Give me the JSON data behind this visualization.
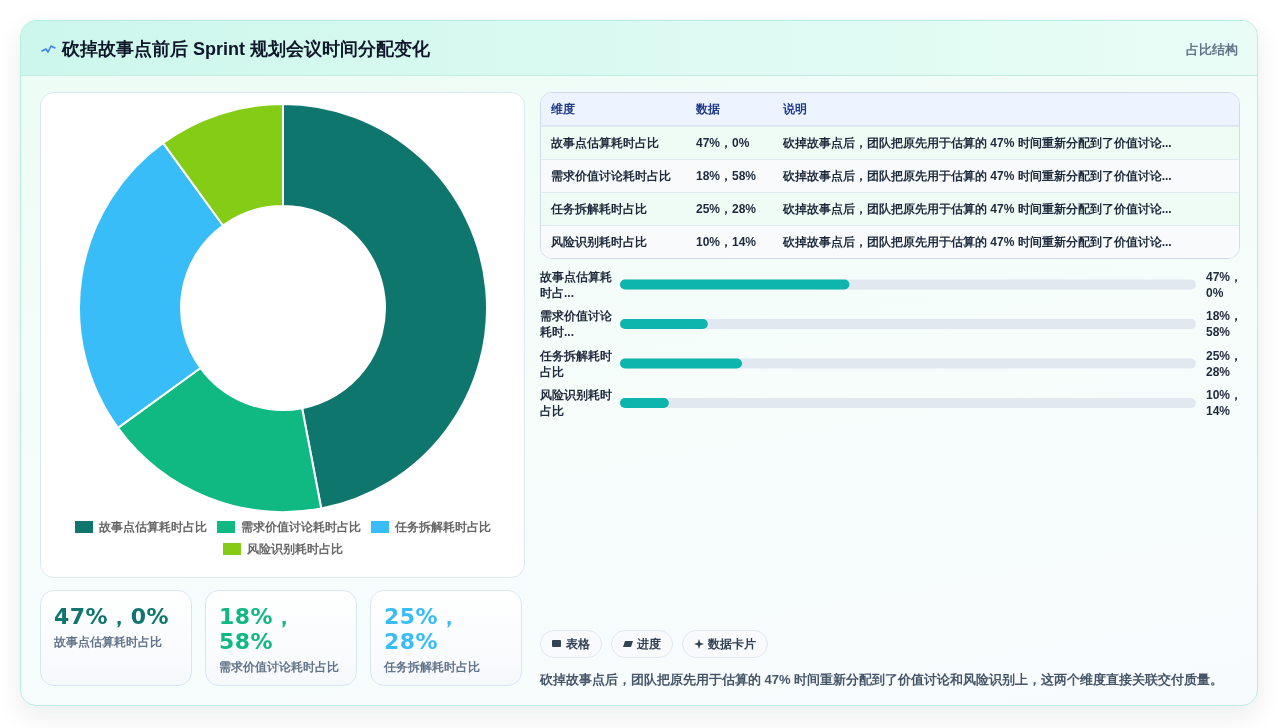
{
  "chart_data": [
    {
      "type": "donut",
      "title": "砍掉故事点前后 Sprint 规划会议时间分配变化",
      "categories": [
        "故事点估算耗时占比",
        "需求价值讨论耗时占比",
        "任务拆解耗时占比",
        "风险识别耗时占比"
      ],
      "values": [
        47,
        18,
        25,
        10
      ],
      "colors": [
        "#0f766e",
        "#10b981",
        "#38bdf8",
        "#84cc16"
      ],
      "legend": "bottom"
    },
    {
      "type": "other",
      "title": "占比结构",
      "annotations": [
        "维度",
        "数据",
        "说明",
        "故事点估算耗时占比",
        "47%，0%",
        "砍掉故事点后，团队把原先用于估算的 47% 时间重新分配到了价值讨论...",
        "需求价值讨论耗时占比",
        "18%，58%",
        "砍掉故事点后，团队把原先用于估算的 47% 时间重新分配到了价值讨论...",
        "任务拆解耗时占比",
        "25%，28%",
        "砍掉故事点后，团队把原先用于估算的 47% 时间重新分配到了价值讨论...",
        "风险识别耗时占比",
        "10%，14%",
        "砍掉故事点后，团队把原先用于估算的 47% 时间重新分配到了价值讨论..."
      ]
    },
    {
      "type": "bar",
      "orientation": "horizontal",
      "categories": [
        "故事点估算耗时占...",
        "需求价值讨论耗时...",
        "任务拆解耗时占比",
        "风险识别耗时占比"
      ],
      "values": [
        47,
        18,
        25,
        10
      ],
      "value_labels": [
        "47%，0%",
        "18%，58%",
        "25%，28%",
        "10%，14%"
      ],
      "color": "#0db5ad",
      "xlim": [
        0,
        118
      ]
    },
    {
      "type": "other",
      "annotations": [
        "47%，0%",
        "故事点估算耗时占比",
        "18%，58%",
        "需求价值讨论耗时占比",
        "25%，28%",
        "任务拆解耗时占比"
      ]
    },
    {
      "type": "other",
      "annotations": [
        "表格",
        "进度",
        "数据卡片",
        "砍掉故事点后，团队把原先用于估算的 47% 时间重新分配到了价值讨论和风险识别上，这两个维度直接关联交付质量。"
      ]
    }
  ]
}
